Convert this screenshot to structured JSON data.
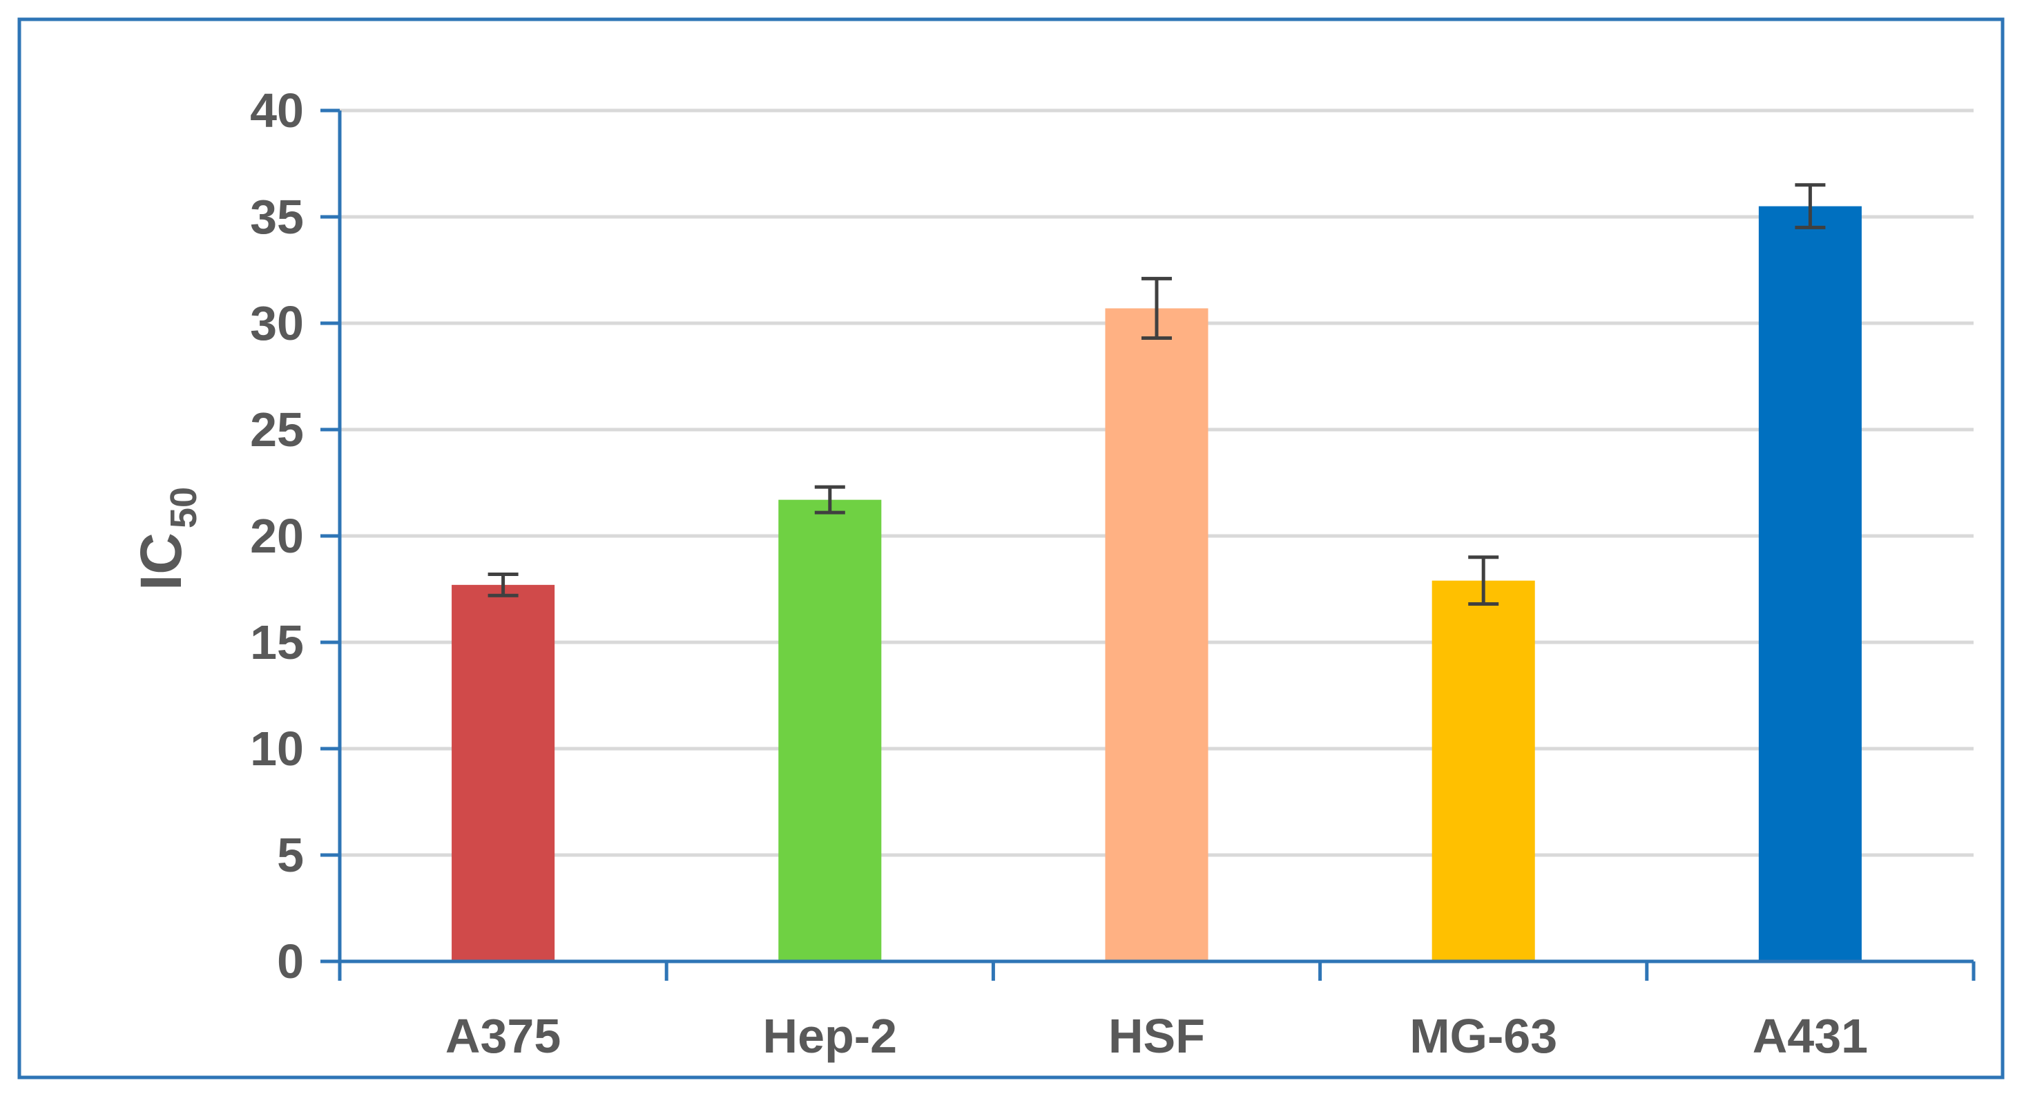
{
  "chart_data": {
    "type": "bar",
    "title": "",
    "xlabel": "",
    "ylabel": "IC",
    "ylabel_subscript": "50",
    "categories": [
      "A375",
      "Hep-2",
      "HSF",
      "MG-63",
      "A431"
    ],
    "values": [
      17.7,
      21.7,
      30.7,
      17.9,
      35.5
    ],
    "errors": [
      0.5,
      0.6,
      1.4,
      1.1,
      1.0
    ],
    "colors": [
      "#D04A4A",
      "#6FD143",
      "#FFB183",
      "#FFC000",
      "#0070C0"
    ],
    "ylim": [
      0,
      40
    ],
    "yticks": [
      "0",
      "5",
      "10",
      "15",
      "20",
      "25",
      "30",
      "35",
      "40"
    ],
    "grid": true,
    "legend": "none"
  },
  "style": {
    "frame_color": "#2E75B6",
    "axis_color": "#2E75B6",
    "grid_color": "#D9D9D9",
    "text_color": "#595959",
    "error_bar_color": "#404040"
  }
}
